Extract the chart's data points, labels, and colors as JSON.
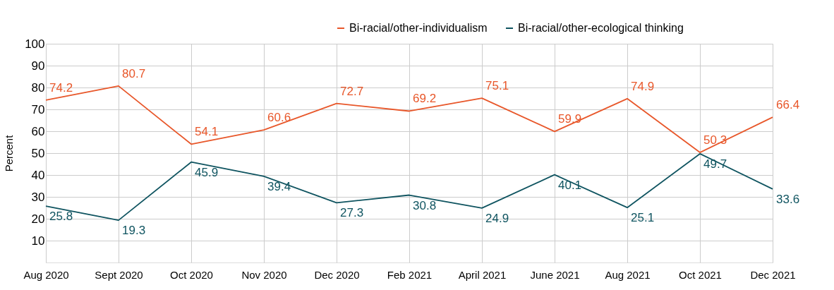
{
  "chart_data": {
    "type": "line",
    "ylabel": "Percent",
    "categories": [
      "Aug 2020",
      "Sept 2020",
      "Oct 2020",
      "Nov 2020",
      "Dec 2020",
      "Feb 2021",
      "April 2021",
      "June 2021",
      "Aug 2021",
      "Oct 2021",
      "Dec 2021"
    ],
    "series": [
      {
        "name": "Bi-racial/other-individualism",
        "color": "#e8572a",
        "values": [
          74.2,
          80.7,
          54.1,
          60.6,
          72.7,
          69.2,
          75.1,
          59.9,
          74.9,
          50.3,
          66.4
        ]
      },
      {
        "name": "Bi-racial/other-ecological thinking",
        "color": "#0f5460",
        "values": [
          25.8,
          19.3,
          45.9,
          39.4,
          27.3,
          30.8,
          24.9,
          40.1,
          25.1,
          49.7,
          33.6
        ]
      }
    ],
    "ylim": [
      0,
      100
    ],
    "yticks": [
      10,
      20,
      30,
      40,
      50,
      60,
      70,
      80,
      90,
      100
    ],
    "grid": true,
    "legend": "top right",
    "data_labels": true,
    "marker": "none",
    "line_style": "solid"
  }
}
